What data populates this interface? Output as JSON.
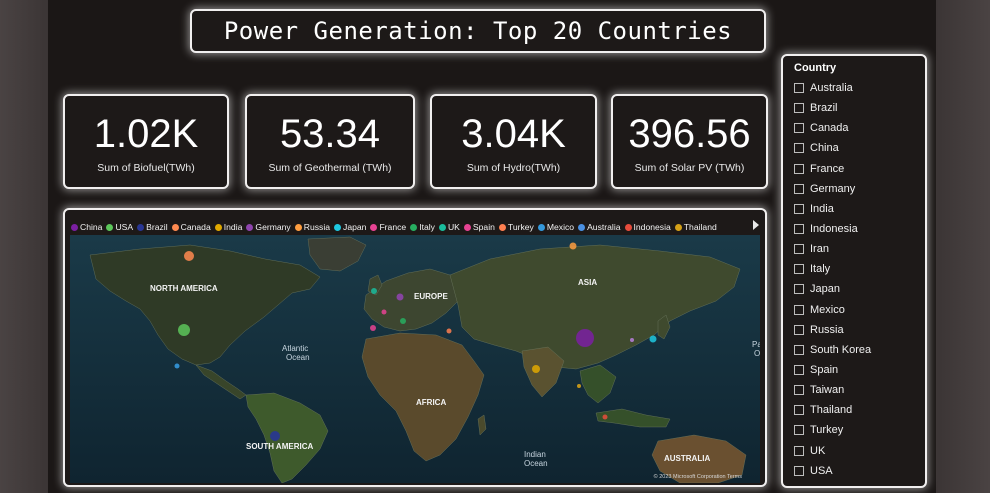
{
  "title": "Power Generation: Top 20 Countries",
  "kpis": [
    {
      "value": "1.02K",
      "label": "Sum of Biofuel(TWh)"
    },
    {
      "value": "53.34",
      "label": "Sum of Geothermal (TWh)"
    },
    {
      "value": "3.04K",
      "label": "Sum of Hydro(TWh)"
    },
    {
      "value": "396.56",
      "label": "Sum of Solar PV (TWh)"
    }
  ],
  "map": {
    "legend": [
      {
        "name": "China",
        "color": "#7b1fa2"
      },
      {
        "name": "USA",
        "color": "#5cc65a"
      },
      {
        "name": "Brazil",
        "color": "#283593"
      },
      {
        "name": "Canada",
        "color": "#ff8a50"
      },
      {
        "name": "India",
        "color": "#e0a800"
      },
      {
        "name": "Germany",
        "color": "#8e44ad"
      },
      {
        "name": "Russia",
        "color": "#ff9e40"
      },
      {
        "name": "Japan",
        "color": "#1ec8e0"
      },
      {
        "name": "France",
        "color": "#e84393"
      },
      {
        "name": "Italy",
        "color": "#27ae60"
      },
      {
        "name": "UK",
        "color": "#1abc9c"
      },
      {
        "name": "Spain",
        "color": "#e84393"
      },
      {
        "name": "Turkey",
        "color": "#ff7f50"
      },
      {
        "name": "Mexico",
        "color": "#3498db"
      },
      {
        "name": "Australia",
        "color": "#4a90e2"
      },
      {
        "name": "Indonesia",
        "color": "#e74c3c"
      },
      {
        "name": "Thailand",
        "color": "#d4a017"
      }
    ],
    "region_labels": {
      "north_america": "NORTH AMERICA",
      "south_america": "SOUTH AMERICA",
      "europe": "EUROPE",
      "asia": "ASIA",
      "africa": "AFRICA",
      "australia": "AUSTRALIA",
      "atlantic_1": "Atlantic",
      "atlantic_2": "Ocean",
      "indian_1": "Indian",
      "indian_2": "Ocean",
      "pacific_1": "Pa",
      "pacific_2": "O"
    },
    "copyright": "© 2023 Microsoft Corporation   Terms"
  },
  "slicer": {
    "header": "Country",
    "items": [
      "Australia",
      "Brazil",
      "Canada",
      "China",
      "France",
      "Germany",
      "India",
      "Indonesia",
      "Iran",
      "Italy",
      "Japan",
      "Mexico",
      "Russia",
      "South Korea",
      "Spain",
      "Taiwan",
      "Thailand",
      "Turkey",
      "UK",
      "USA"
    ]
  }
}
